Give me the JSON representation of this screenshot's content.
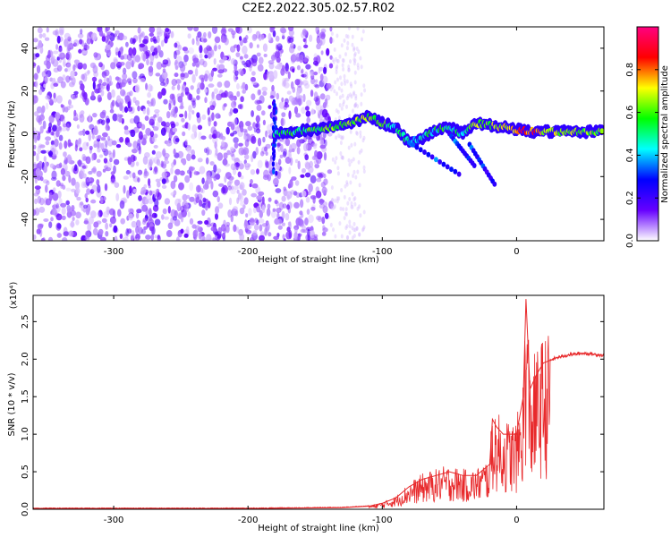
{
  "title": "C2E2.2022.305.02.57.R02",
  "chart_data": [
    {
      "type": "heatmap",
      "xlabel": "Height of straight line (km)",
      "ylabel": "Frequency (Hz)",
      "xlim": [
        -360,
        65
      ],
      "ylim": [
        -50,
        50
      ],
      "x_ticks": [
        -300,
        -200,
        -100,
        0
      ],
      "y_ticks": [
        -40,
        -20,
        0,
        20,
        40
      ],
      "colorbar": {
        "label": "Normalized spectral amplitude",
        "range": [
          0,
          1
        ],
        "ticks": [
          "0.0",
          "0.2",
          "0.4",
          "0.6",
          "0.8"
        ],
        "colors": [
          "#ffffff",
          "#6600ff",
          "#0000ff",
          "#00ffff",
          "#00ff00",
          "#ffff00",
          "#ff0000",
          "#ff0080"
        ]
      },
      "noise_region_x": [
        -360,
        -138
      ],
      "signal_track": [
        {
          "x": -180,
          "y": 0,
          "a": 0.5
        },
        {
          "x": -135,
          "y": 3,
          "a": 0.6
        },
        {
          "x": -120,
          "y": 6,
          "a": 0.6
        },
        {
          "x": -110,
          "y": 8,
          "a": 0.65
        },
        {
          "x": -100,
          "y": 5,
          "a": 0.6
        },
        {
          "x": -90,
          "y": 3,
          "a": 0.5
        },
        {
          "x": -80,
          "y": -4,
          "a": 0.45
        },
        {
          "x": -70,
          "y": -2,
          "a": 0.45
        },
        {
          "x": -60,
          "y": 2,
          "a": 0.5
        },
        {
          "x": -50,
          "y": 3,
          "a": 0.5
        },
        {
          "x": -40,
          "y": 0,
          "a": 0.45
        },
        {
          "x": -30,
          "y": 5,
          "a": 0.6
        },
        {
          "x": -20,
          "y": 4,
          "a": 0.65
        },
        {
          "x": -10,
          "y": 3,
          "a": 0.7
        },
        {
          "x": 0,
          "y": 2,
          "a": 0.8
        },
        {
          "x": 10,
          "y": 1,
          "a": 0.85
        },
        {
          "x": 20,
          "y": 1,
          "a": 0.7
        },
        {
          "x": 40,
          "y": 1,
          "a": 0.65
        },
        {
          "x": 65,
          "y": 1,
          "a": 0.6
        }
      ]
    },
    {
      "type": "line",
      "xlabel": "Height of straight line (km)",
      "ylabel": "SNR (10 * v/v)",
      "y_multiplier": "(x10⁴)",
      "xlim": [
        -360,
        65
      ],
      "ylim": [
        0,
        2.85
      ],
      "x_ticks": [
        -300,
        -200,
        -100,
        0
      ],
      "y_ticks": [
        "0.0",
        "0.5",
        "1.0",
        "1.5",
        "2.0",
        "2.5"
      ],
      "series": [
        {
          "color": "#e8292b",
          "x": [
            -360,
            -300,
            -200,
            -130,
            -110,
            -100,
            -90,
            -80,
            -70,
            -60,
            -50,
            -40,
            -30,
            -20,
            -18,
            -15,
            -10,
            -5,
            0,
            5,
            7,
            10,
            15,
            20,
            30,
            40,
            50,
            65
          ],
          "y": [
            0.01,
            0.01,
            0.01,
            0.02,
            0.04,
            0.08,
            0.15,
            0.3,
            0.4,
            0.45,
            0.5,
            0.45,
            0.45,
            0.6,
            1.2,
            1.1,
            1.0,
            1.0,
            1.0,
            1.5,
            2.8,
            1.6,
            1.8,
            1.95,
            2.02,
            2.06,
            2.08,
            2.05
          ]
        }
      ]
    }
  ]
}
